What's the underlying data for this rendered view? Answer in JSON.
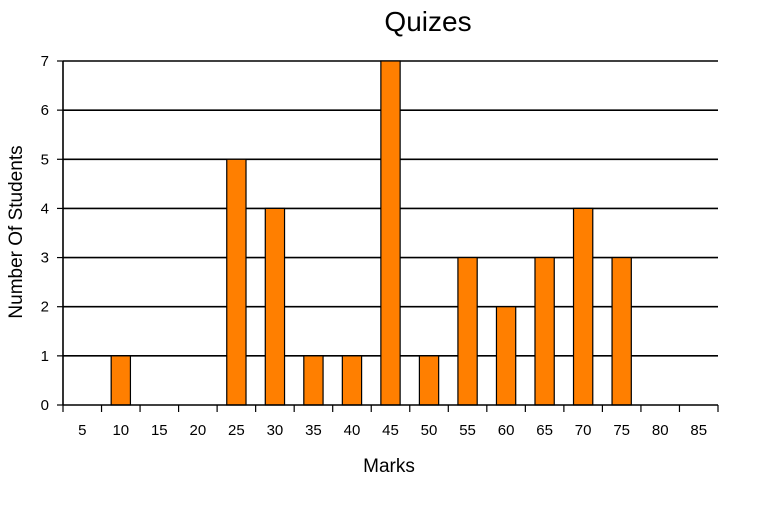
{
  "chart_data": {
    "type": "bar",
    "title": "Quizes",
    "xlabel": "Marks",
    "ylabel": "Number Of Students",
    "categories": [
      "5",
      "10",
      "15",
      "20",
      "25",
      "30",
      "35",
      "40",
      "45",
      "50",
      "55",
      "60",
      "65",
      "70",
      "75",
      "80",
      "85"
    ],
    "values": [
      0,
      1,
      0,
      0,
      5,
      4,
      1,
      1,
      7,
      1,
      3,
      2,
      3,
      4,
      3,
      0,
      0
    ],
    "yticks": [
      "0",
      "1",
      "2",
      "3",
      "4",
      "5",
      "6",
      "7"
    ],
    "ylim": [
      0,
      7
    ],
    "grid": true,
    "bar_color": "#ff7f00",
    "bar_edge_color": "#000000"
  }
}
